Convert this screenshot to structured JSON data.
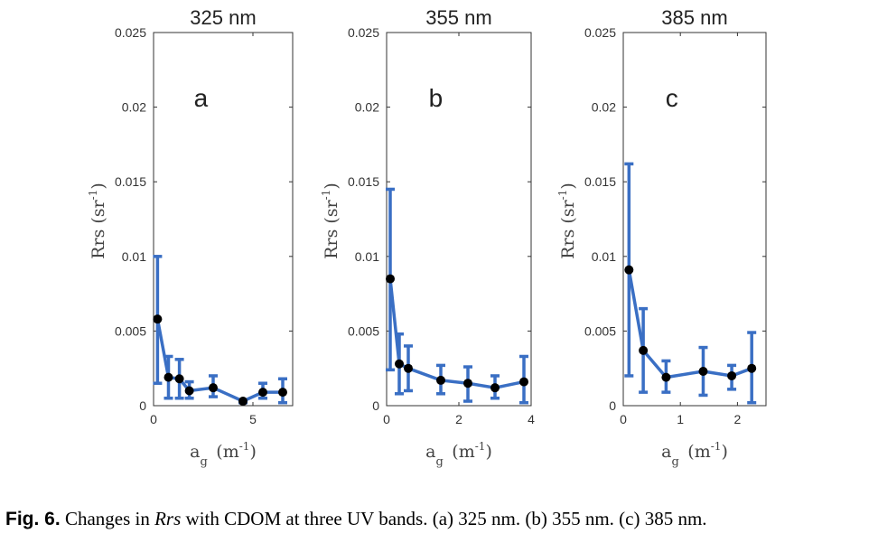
{
  "chart_data": [
    {
      "type": "line",
      "title": "325 nm",
      "panel_label": "a",
      "xlabel_main": "a",
      "xlabel_sub": "g",
      "xlabel_unit_open": "(m",
      "xlabel_unit_exp": "-1",
      "xlabel_unit_close": ")",
      "ylabel_main": "Rrs (sr",
      "ylabel_exp": "-1",
      "ylabel_close": ")",
      "xlim": [
        0,
        7
      ],
      "ylim": [
        0,
        0.025
      ],
      "xticks": [
        0,
        5
      ],
      "xtick_labels": [
        "0",
        "5"
      ],
      "yticks": [
        0,
        0.005,
        0.01,
        0.015,
        0.02,
        0.025
      ],
      "ytick_labels": [
        "0",
        "0.005",
        "0.01",
        "0.015",
        "0.02",
        "0.025"
      ],
      "grid": false,
      "series": [
        {
          "x": [
            0.2,
            0.75,
            1.3,
            1.8,
            3.0,
            4.5,
            5.5,
            6.5
          ],
          "y": [
            0.0058,
            0.0019,
            0.0018,
            0.001,
            0.0012,
            0.0003,
            0.0009,
            0.0009
          ],
          "err_low": [
            0.0015,
            0.0005,
            0.0005,
            0.0005,
            0.0006,
            0.0002,
            0.0005,
            0.0002
          ],
          "err_high": [
            0.01,
            0.0033,
            0.0031,
            0.0016,
            0.002,
            0.0004,
            0.0015,
            0.0018
          ]
        }
      ]
    },
    {
      "type": "line",
      "title": "355 nm",
      "panel_label": "b",
      "xlabel_main": "a",
      "xlabel_sub": "g",
      "xlabel_unit_open": "(m",
      "xlabel_unit_exp": "-1",
      "xlabel_unit_close": ")",
      "ylabel_main": "Rrs (sr",
      "ylabel_exp": "-1",
      "ylabel_close": ")",
      "xlim": [
        0,
        4
      ],
      "ylim": [
        0,
        0.025
      ],
      "xticks": [
        0,
        2,
        4
      ],
      "xtick_labels": [
        "0",
        "2",
        "4"
      ],
      "yticks": [
        0,
        0.005,
        0.01,
        0.015,
        0.02,
        0.025
      ],
      "ytick_labels": [
        "0",
        "0.005",
        "0.01",
        "0.015",
        "0.02",
        "0.025"
      ],
      "grid": false,
      "series": [
        {
          "x": [
            0.1,
            0.35,
            0.6,
            1.5,
            2.25,
            3.0,
            3.8
          ],
          "y": [
            0.0085,
            0.0028,
            0.0025,
            0.0017,
            0.0015,
            0.0012,
            0.0016
          ],
          "err_low": [
            0.0024,
            0.0008,
            0.001,
            0.0008,
            0.0003,
            0.0005,
            0.0002
          ],
          "err_high": [
            0.0145,
            0.0048,
            0.004,
            0.0027,
            0.0026,
            0.002,
            0.0033
          ]
        }
      ]
    },
    {
      "type": "line",
      "title": "385 nm",
      "panel_label": "c",
      "xlabel_main": "a",
      "xlabel_sub": "g",
      "xlabel_unit_open": "(m",
      "xlabel_unit_exp": "-1",
      "xlabel_unit_close": ")",
      "ylabel_main": "Rrs (sr",
      "ylabel_exp": "-1",
      "ylabel_close": ")",
      "xlim": [
        0,
        2.5
      ],
      "ylim": [
        0,
        0.025
      ],
      "xticks": [
        0,
        1,
        2
      ],
      "xtick_labels": [
        "0",
        "1",
        "2"
      ],
      "yticks": [
        0,
        0.005,
        0.01,
        0.015,
        0.02,
        0.025
      ],
      "ytick_labels": [
        "0",
        "0.005",
        "0.01",
        "0.015",
        "0.02",
        "0.025"
      ],
      "grid": false,
      "series": [
        {
          "x": [
            0.1,
            0.35,
            0.75,
            1.4,
            1.9,
            2.25
          ],
          "y": [
            0.0091,
            0.0037,
            0.0019,
            0.0023,
            0.002,
            0.0025
          ],
          "err_low": [
            0.002,
            0.0009,
            0.0009,
            0.0007,
            0.0011,
            0.0002
          ],
          "err_high": [
            0.0162,
            0.0065,
            0.003,
            0.0039,
            0.0027,
            0.0049
          ]
        }
      ]
    }
  ],
  "colors": {
    "line": "#3a6fc4",
    "marker": "#000000",
    "axis": "#333333"
  },
  "caption": {
    "label": "Fig. 6.",
    "text_before": "Changes in ",
    "italic": "Rrs",
    "text_after": " with CDOM at three UV bands.  (a) 325 nm.  (b) 355 nm.  (c) 385 nm."
  }
}
